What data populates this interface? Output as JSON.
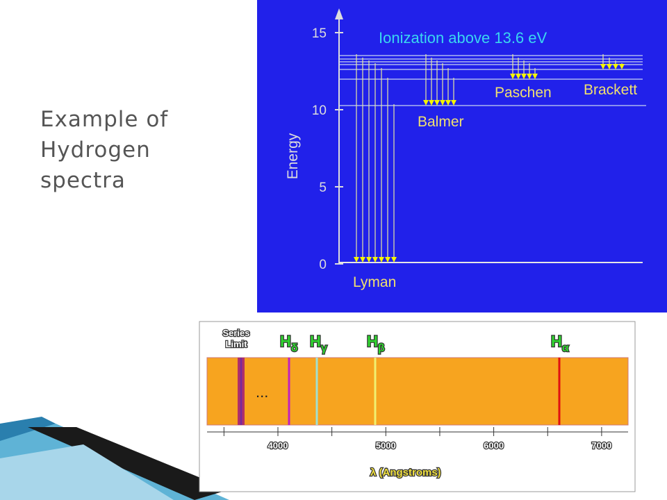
{
  "slide": {
    "title": [
      "Example of",
      "Hydrogen",
      "spectra"
    ]
  },
  "energy_diagram": {
    "axis_label": "Energy",
    "ticks": [
      0,
      5,
      10,
      15
    ],
    "ionization": "Ionization above 13.6 eV",
    "series": [
      "Lyman",
      "Balmer",
      "Paschen",
      "Brackett"
    ]
  },
  "spectrum": {
    "series_limit": [
      "Series",
      "Limit"
    ],
    "lines": [
      {
        "label": "H",
        "sub": "δ"
      },
      {
        "label": "H",
        "sub": "γ"
      },
      {
        "label": "H",
        "sub": "β"
      },
      {
        "label": "H",
        "sub": "α"
      }
    ],
    "ellipsis": "...",
    "ticks": [
      4000,
      5000,
      6000,
      7000
    ],
    "axis_label": "λ (Angstroms)"
  }
}
